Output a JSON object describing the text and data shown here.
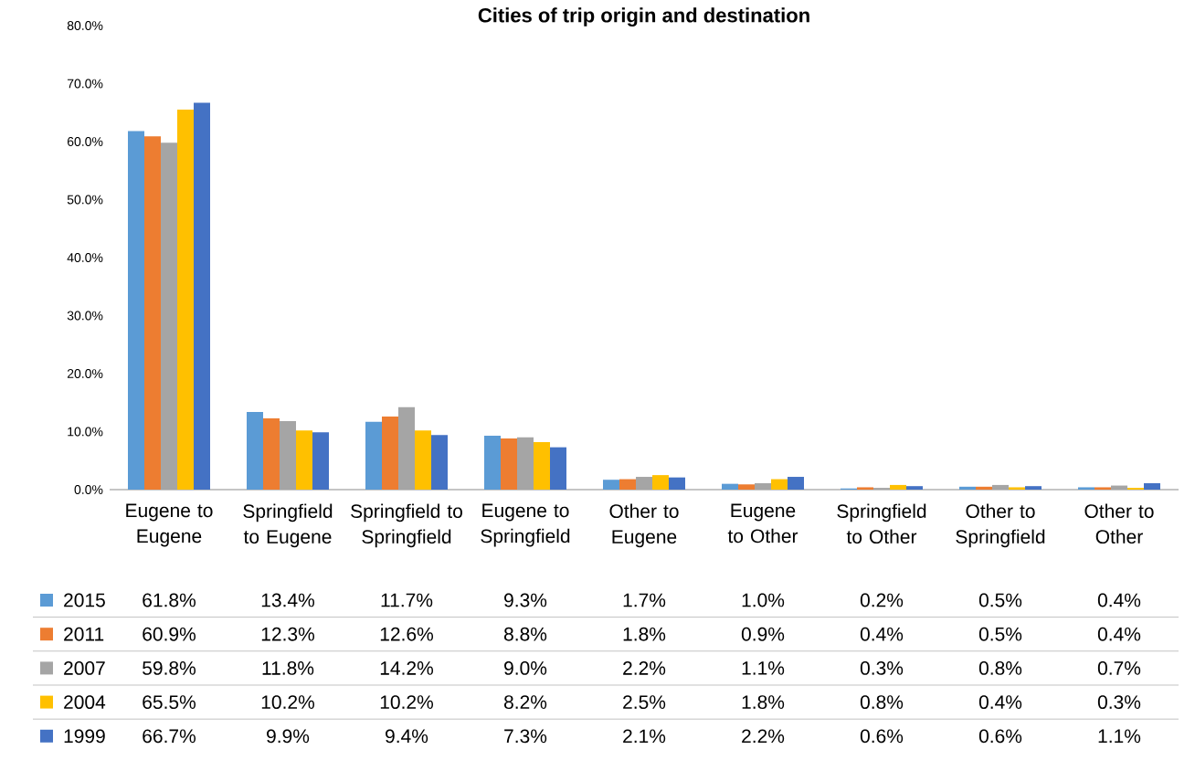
{
  "chart_data": {
    "type": "bar",
    "title": "Cities of trip origin and destination",
    "categories": [
      "Eugene to Eugene",
      "Springfield to Eugene",
      "Springfield to Springfield",
      "Eugene to Springfield",
      "Other to Eugene",
      "Eugene to Other",
      "Springfield to Other",
      "Other to Springfield",
      "Other to Other"
    ],
    "series": [
      {
        "name": "2015",
        "color": "#5b9bd5",
        "values": [
          61.8,
          13.4,
          11.7,
          9.3,
          1.7,
          1.0,
          0.2,
          0.5,
          0.4
        ],
        "value_labels": [
          "61.8%",
          "13.4%",
          "11.7%",
          "9.3%",
          "1.7%",
          "1.0%",
          "0.2%",
          "0.5%",
          "0.4%"
        ]
      },
      {
        "name": "2011",
        "color": "#ed7d31",
        "values": [
          60.9,
          12.3,
          12.6,
          8.8,
          1.8,
          0.9,
          0.4,
          0.5,
          0.4
        ],
        "value_labels": [
          "60.9%",
          "12.3%",
          "12.6%",
          "8.8%",
          "1.8%",
          "0.9%",
          "0.4%",
          "0.5%",
          "0.4%"
        ]
      },
      {
        "name": "2007",
        "color": "#a5a5a5",
        "values": [
          59.8,
          11.8,
          14.2,
          9.0,
          2.2,
          1.1,
          0.3,
          0.8,
          0.7
        ],
        "value_labels": [
          "59.8%",
          "11.8%",
          "14.2%",
          "9.0%",
          "2.2%",
          "1.1%",
          "0.3%",
          "0.8%",
          "0.7%"
        ]
      },
      {
        "name": "2004",
        "color": "#ffc000",
        "values": [
          65.5,
          10.2,
          10.2,
          8.2,
          2.5,
          1.8,
          0.8,
          0.4,
          0.3
        ],
        "value_labels": [
          "65.5%",
          "10.2%",
          "10.2%",
          "8.2%",
          "2.5%",
          "1.8%",
          "0.8%",
          "0.4%",
          "0.3%"
        ]
      },
      {
        "name": "1999",
        "color": "#4472c4",
        "values": [
          66.7,
          9.9,
          9.4,
          7.3,
          2.1,
          2.2,
          0.6,
          0.6,
          1.1
        ],
        "value_labels": [
          "66.7%",
          "9.9%",
          "9.4%",
          "7.3%",
          "2.1%",
          "2.2%",
          "0.6%",
          "0.6%",
          "1.1%"
        ]
      }
    ],
    "ylim": [
      0,
      80
    ],
    "yticks": [
      {
        "value": 0,
        "label": "0.0%"
      },
      {
        "value": 10,
        "label": "10.0%"
      },
      {
        "value": 20,
        "label": "20.0%"
      },
      {
        "value": 30,
        "label": "30.0%"
      },
      {
        "value": 40,
        "label": "40.0%"
      },
      {
        "value": 50,
        "label": "50.0%"
      },
      {
        "value": 60,
        "label": "60.0%"
      },
      {
        "value": 70,
        "label": "70.0%"
      },
      {
        "value": 80,
        "label": "80.0%"
      }
    ],
    "legend": "bottom"
  }
}
